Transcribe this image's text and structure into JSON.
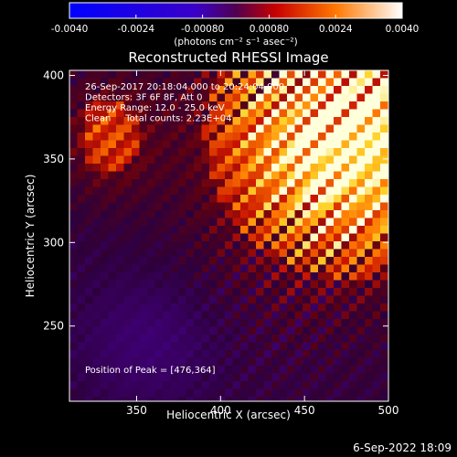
{
  "chart_data": {
    "type": "heatmap",
    "title": "Reconstructed RHESSI Image",
    "xlabel": "Heliocentric X (arcsec)",
    "ylabel": "Heliocentric Y (arcsec)",
    "xlim": [
      310,
      500
    ],
    "ylim": [
      205,
      403
    ],
    "x_ticks": [
      350,
      400,
      450,
      500
    ],
    "y_ticks": [
      250,
      300,
      350,
      400
    ],
    "colorbar": {
      "range": [
        -0.004,
        0.004
      ],
      "tick_values": [
        -0.004,
        -0.0024,
        -0.0008,
        0.0008,
        0.0024,
        0.004
      ],
      "tick_labels": [
        "-0.0040",
        "-0.0024",
        "-0.00080",
        "0.00080",
        "0.0024",
        "0.0040"
      ],
      "label": "(photons cm⁻² s⁻¹ asec⁻²)"
    },
    "annotations": [
      "26-Sep-2017 20:18:04.000 to 20:24:04.000",
      "Detectors: 3F 6F 8F, Att 0",
      "Energy Range: 12.0 - 25.0 keV",
      "Clean     Total counts: 2.23E+04"
    ],
    "peak_label": "Position of Peak = [476,364]",
    "peak": {
      "x": 476,
      "y": 364
    },
    "timestamp": "6-Sep-2022 18:09"
  }
}
